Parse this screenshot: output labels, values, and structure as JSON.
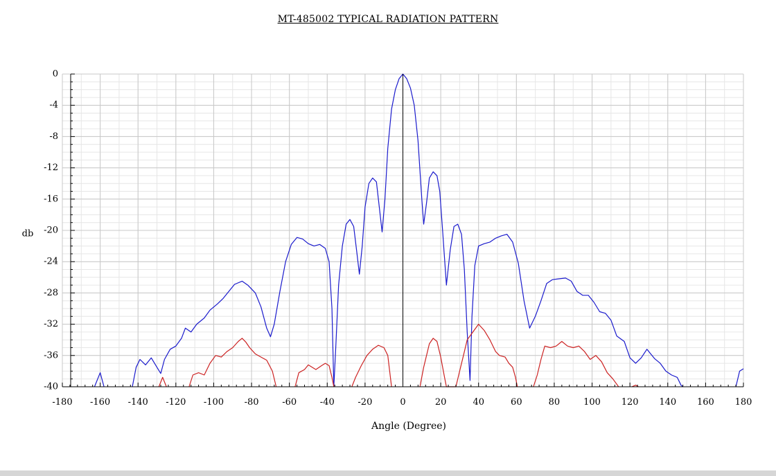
{
  "chart_data": {
    "type": "line",
    "title": "MT-485002  TYPICAL RADIATION PATTERN",
    "xlabel": "Angle (Degree)",
    "ylabel": "db",
    "xlim": [
      -180,
      180
    ],
    "ylim": [
      -40,
      0
    ],
    "x_ticks": [
      "-180",
      "-160",
      "-140",
      "-120",
      "-100",
      "-80",
      "-60",
      "-40",
      "-20",
      "0",
      "20",
      "40",
      "60",
      "80",
      "100",
      "120",
      "140",
      "160",
      "180"
    ],
    "y_ticks": [
      "0",
      "-4",
      "-8",
      "-12",
      "-16",
      "-20",
      "-24",
      "-28",
      "-32",
      "-36",
      "-40"
    ],
    "grid": true,
    "legend": "none",
    "series": [
      {
        "color": "#1a1acc",
        "points": [
          [
            -163,
            -40
          ],
          [
            -160,
            -38.2
          ],
          [
            -158,
            -40
          ],
          [
            -143,
            -40
          ],
          [
            -141,
            -37.5
          ],
          [
            -139,
            -36.5
          ],
          [
            -136,
            -37.2
          ],
          [
            -133,
            -36.3
          ],
          [
            -130,
            -37.5
          ],
          [
            -128,
            -38.3
          ],
          [
            -126,
            -36.5
          ],
          [
            -123,
            -35.2
          ],
          [
            -120,
            -34.8
          ],
          [
            -117,
            -33.8
          ],
          [
            -115,
            -32.5
          ],
          [
            -112,
            -33
          ],
          [
            -109,
            -32
          ],
          [
            -105,
            -31.2
          ],
          [
            -102,
            -30.2
          ],
          [
            -98,
            -29.4
          ],
          [
            -95,
            -28.7
          ],
          [
            -92,
            -27.8
          ],
          [
            -89,
            -26.9
          ],
          [
            -85,
            -26.5
          ],
          [
            -82,
            -27
          ],
          [
            -78,
            -28
          ],
          [
            -75,
            -29.8
          ],
          [
            -72,
            -32.5
          ],
          [
            -70,
            -33.6
          ],
          [
            -68,
            -32
          ],
          [
            -65,
            -27.8
          ],
          [
            -62,
            -24
          ],
          [
            -59,
            -21.8
          ],
          [
            -56,
            -20.9
          ],
          [
            -53,
            -21.1
          ],
          [
            -50,
            -21.7
          ],
          [
            -47,
            -22
          ],
          [
            -44,
            -21.8
          ],
          [
            -41,
            -22.3
          ],
          [
            -39,
            -24
          ],
          [
            -37.5,
            -30
          ],
          [
            -36.5,
            -40
          ],
          [
            -35.5,
            -35
          ],
          [
            -34,
            -27
          ],
          [
            -32,
            -22
          ],
          [
            -30,
            -19.2
          ],
          [
            -28,
            -18.6
          ],
          [
            -26,
            -19.5
          ],
          [
            -24.5,
            -22.5
          ],
          [
            -23,
            -25.6
          ],
          [
            -21.5,
            -22
          ],
          [
            -20,
            -17
          ],
          [
            -18,
            -14
          ],
          [
            -16,
            -13.3
          ],
          [
            -14,
            -13.8
          ],
          [
            -12.5,
            -17
          ],
          [
            -11,
            -20.2
          ],
          [
            -9.5,
            -16
          ],
          [
            -8,
            -9.5
          ],
          [
            -6,
            -4.5
          ],
          [
            -4,
            -2
          ],
          [
            -2,
            -0.6
          ],
          [
            0,
            0
          ],
          [
            2,
            -0.6
          ],
          [
            4,
            -1.8
          ],
          [
            6,
            -4
          ],
          [
            8,
            -8.5
          ],
          [
            10,
            -16
          ],
          [
            11,
            -19.2
          ],
          [
            12.5,
            -16.5
          ],
          [
            14,
            -13.3
          ],
          [
            16,
            -12.5
          ],
          [
            18,
            -13
          ],
          [
            19.5,
            -15
          ],
          [
            21,
            -20
          ],
          [
            23,
            -27
          ],
          [
            25,
            -22.5
          ],
          [
            27,
            -19.5
          ],
          [
            29,
            -19.2
          ],
          [
            31,
            -20.5
          ],
          [
            32.5,
            -25
          ],
          [
            34,
            -33
          ],
          [
            35.5,
            -39.2
          ],
          [
            36.5,
            -31
          ],
          [
            38,
            -24.5
          ],
          [
            40,
            -22
          ],
          [
            43,
            -21.7
          ],
          [
            46,
            -21.5
          ],
          [
            49,
            -21
          ],
          [
            52,
            -20.7
          ],
          [
            55,
            -20.5
          ],
          [
            58,
            -21.5
          ],
          [
            61,
            -24.2
          ],
          [
            64,
            -29
          ],
          [
            67,
            -32.5
          ],
          [
            70,
            -31
          ],
          [
            73,
            -29
          ],
          [
            76,
            -26.8
          ],
          [
            79,
            -26.3
          ],
          [
            82,
            -26.2
          ],
          [
            86,
            -26.1
          ],
          [
            89,
            -26.5
          ],
          [
            92,
            -27.8
          ],
          [
            95,
            -28.3
          ],
          [
            98,
            -28.3
          ],
          [
            101,
            -29.2
          ],
          [
            104,
            -30.4
          ],
          [
            107,
            -30.6
          ],
          [
            110,
            -31.5
          ],
          [
            113,
            -33.5
          ],
          [
            117,
            -34.2
          ],
          [
            120,
            -36.3
          ],
          [
            123,
            -37
          ],
          [
            126,
            -36.3
          ],
          [
            129,
            -35.2
          ],
          [
            133,
            -36.4
          ],
          [
            136,
            -37
          ],
          [
            139,
            -38
          ],
          [
            142,
            -38.5
          ],
          [
            145,
            -38.8
          ],
          [
            147,
            -39.8
          ],
          [
            148,
            -40
          ],
          [
            176,
            -40
          ],
          [
            178,
            -38
          ],
          [
            180,
            -37.7
          ]
        ]
      },
      {
        "color": "#cc2222",
        "points": [
          [
            -129,
            -40
          ],
          [
            -127,
            -38.8
          ],
          [
            -125,
            -40
          ],
          [
            -113,
            -40
          ],
          [
            -111,
            -38.5
          ],
          [
            -108,
            -38.2
          ],
          [
            -105,
            -38.5
          ],
          [
            -102,
            -37
          ],
          [
            -99,
            -36
          ],
          [
            -96,
            -36.2
          ],
          [
            -93,
            -35.5
          ],
          [
            -90,
            -35
          ],
          [
            -87,
            -34.2
          ],
          [
            -85,
            -33.8
          ],
          [
            -83,
            -34.3
          ],
          [
            -81,
            -35
          ],
          [
            -78,
            -35.8
          ],
          [
            -75,
            -36.2
          ],
          [
            -72,
            -36.6
          ],
          [
            -69,
            -38
          ],
          [
            -67,
            -40
          ],
          [
            -57,
            -40
          ],
          [
            -55,
            -38.2
          ],
          [
            -52,
            -37.8
          ],
          [
            -50,
            -37.2
          ],
          [
            -48,
            -37.5
          ],
          [
            -46,
            -37.8
          ],
          [
            -43,
            -37.3
          ],
          [
            -41,
            -37
          ],
          [
            -39,
            -37.3
          ],
          [
            -37.5,
            -38.8
          ],
          [
            -36.5,
            -40
          ],
          [
            -27,
            -40
          ],
          [
            -25,
            -38.8
          ],
          [
            -22,
            -37.3
          ],
          [
            -19,
            -36
          ],
          [
            -16,
            -35.2
          ],
          [
            -13,
            -34.7
          ],
          [
            -10,
            -35
          ],
          [
            -8,
            -36
          ],
          [
            -7,
            -38
          ],
          [
            -6,
            -40
          ],
          [
            9,
            -40
          ],
          [
            11,
            -37.5
          ],
          [
            14,
            -34.5
          ],
          [
            16,
            -33.8
          ],
          [
            18,
            -34.2
          ],
          [
            20,
            -36.2
          ],
          [
            22,
            -38.8
          ],
          [
            23,
            -40
          ],
          [
            28,
            -40
          ],
          [
            30,
            -38
          ],
          [
            32,
            -36
          ],
          [
            34,
            -34
          ],
          [
            37,
            -33
          ],
          [
            40,
            -32
          ],
          [
            43,
            -32.8
          ],
          [
            46,
            -34
          ],
          [
            49,
            -35.5
          ],
          [
            51,
            -36
          ],
          [
            54,
            -36.2
          ],
          [
            56,
            -37
          ],
          [
            58,
            -37.5
          ],
          [
            59.5,
            -38.8
          ],
          [
            60.5,
            -40
          ],
          [
            69,
            -40
          ],
          [
            71,
            -38.5
          ],
          [
            73,
            -36.5
          ],
          [
            75,
            -34.8
          ],
          [
            78,
            -35
          ],
          [
            81,
            -34.8
          ],
          [
            84,
            -34.2
          ],
          [
            87,
            -34.8
          ],
          [
            90,
            -35
          ],
          [
            93,
            -34.8
          ],
          [
            96,
            -35.5
          ],
          [
            99,
            -36.5
          ],
          [
            102,
            -36
          ],
          [
            105,
            -36.8
          ],
          [
            108,
            -38.2
          ],
          [
            111,
            -39
          ],
          [
            114,
            -40
          ],
          [
            121,
            -40
          ],
          [
            123,
            -39.8
          ],
          [
            124.5,
            -40
          ]
        ]
      }
    ]
  }
}
